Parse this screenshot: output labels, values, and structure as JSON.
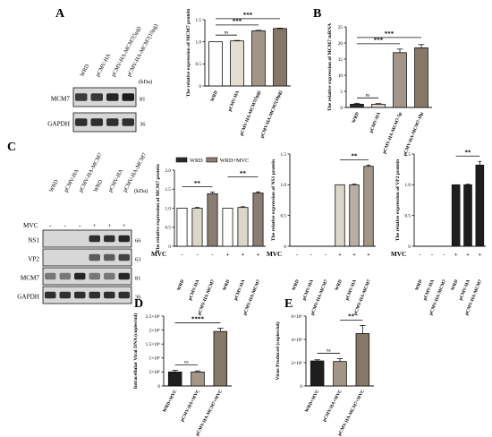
{
  "panels": {
    "A": "A",
    "B": "B",
    "C": "C",
    "D": "D",
    "E": "E"
  },
  "blot_A": {
    "lanes": [
      "WRD",
      "pCMV-HA",
      "pCMV-HA-MCM7(5μg)",
      "pCMV-HA-MCM7(10μg)"
    ],
    "kda_unit": "(kDa)",
    "rows": [
      {
        "label": "MCM7",
        "kda": "81",
        "intensity": [
          0.78,
          0.8,
          0.9,
          0.95
        ]
      },
      {
        "label": "GAPDH",
        "kda": "36",
        "intensity": [
          0.85,
          0.85,
          0.85,
          0.85
        ]
      }
    ]
  },
  "blot_C": {
    "lanes": [
      "WRD",
      "pCMV-HA",
      "pCMV-HA-MCM7",
      "WRD",
      "pCMV-HA",
      "pCMV-HA-MCM7"
    ],
    "kda_unit": "(kDa)",
    "mvc_label": "MVC",
    "mvc_signs": [
      "-",
      "-",
      "-",
      "+",
      "+",
      "+"
    ],
    "rows": [
      {
        "label": "NS1",
        "kda": "66",
        "intensity": [
          0,
          0,
          0,
          0.85,
          0.85,
          0.9
        ]
      },
      {
        "label": "VP2",
        "kda": "63",
        "intensity": [
          0,
          0,
          0,
          0.6,
          0.6,
          0.75
        ]
      },
      {
        "label": "MCM7",
        "kda": "81",
        "intensity": [
          0.45,
          0.45,
          0.9,
          0.45,
          0.45,
          0.9
        ]
      },
      {
        "label": "GAPDH",
        "kda": "36",
        "intensity": [
          0.85,
          0.85,
          0.85,
          0.85,
          0.85,
          0.85
        ]
      }
    ]
  },
  "chart_data": [
    {
      "id": "A",
      "type": "bar",
      "ylabel": "The relative expression of MCM7 protein",
      "categories": [
        "WRD",
        "pCMV-HA",
        "pCMV-HA-MCM7(5μg)",
        "pCMV-HA-MCM7(10μg)"
      ],
      "values": [
        1.0,
        1.02,
        1.25,
        1.3
      ],
      "errors": [
        0.0,
        0.01,
        0.01,
        0.01
      ],
      "colors": [
        "#ffffff",
        "#e4ddd2",
        "#a39587",
        "#867866"
      ],
      "ylim": [
        0,
        1.5
      ],
      "yticks": [
        0.0,
        0.5,
        1.0,
        1.5
      ],
      "significance": [
        {
          "from": 0,
          "to": 1,
          "label": "ns"
        },
        {
          "from": 0,
          "to": 2,
          "label": "***"
        },
        {
          "from": 0,
          "to": 3,
          "label": "***"
        }
      ]
    },
    {
      "id": "B",
      "type": "bar",
      "ylabel": "The relative expression of MCM7 mRNA",
      "categories": [
        "WRD",
        "pCMV-HA",
        "pCMV-HA-MCM7-5μ",
        "pCMV-HA-MCM7-10μ"
      ],
      "values": [
        1.0,
        1.0,
        17.0,
        18.5
      ],
      "errors": [
        0.3,
        0.2,
        1.1,
        1.0
      ],
      "colors": [
        "#2b2b2b",
        "#dcd5c9",
        "#a39587",
        "#867866"
      ],
      "ylim": [
        0,
        25
      ],
      "yticks": [
        0,
        5,
        10,
        15,
        20,
        25
      ],
      "significance": [
        {
          "from": 0,
          "to": 1,
          "label": "ns"
        },
        {
          "from": 0,
          "to": 2,
          "label": "***"
        },
        {
          "from": 0,
          "to": 3,
          "label": "***"
        }
      ]
    },
    {
      "id": "C1",
      "type": "bar",
      "ylabel": "The relative expression of MCM7 protein",
      "legend": [
        "WRD",
        "WRD+MVC"
      ],
      "legend_colors": [
        "#2b2b2b",
        "#8a7e74"
      ],
      "mvc_label": "MVC",
      "categories": [
        "WRD",
        "pCMV-HA",
        "pCMV-HA-MCM7",
        "WRD",
        "pCMV-HA",
        "pCMV-HA-MCM7"
      ],
      "mvc_signs": [
        "-",
        "-",
        "-",
        "+",
        "+",
        "+"
      ],
      "values": [
        1.0,
        1.0,
        1.38,
        1.0,
        1.02,
        1.4
      ],
      "errors": [
        0.0,
        0.02,
        0.04,
        0.0,
        0.02,
        0.03
      ],
      "colors": [
        "#ffffff",
        "#dcd5c9",
        "#8a7e74",
        "#ffffff",
        "#dcd5c9",
        "#8a7e74"
      ],
      "ylim": [
        0,
        2.0
      ],
      "yticks": [
        0.0,
        0.5,
        1.0,
        1.5,
        2.0
      ],
      "significance": [
        {
          "from": 0,
          "to": 2,
          "label": "**"
        },
        {
          "from": 3,
          "to": 5,
          "label": "**"
        }
      ]
    },
    {
      "id": "C2",
      "type": "bar",
      "ylabel": "The relative expression of NS1 protein",
      "mvc_label": "MVC",
      "categories": [
        "WRD",
        "pCMV-HA",
        "pCMV-HA-MCM7",
        "WRD",
        "pCMV-HA",
        "pCMV-HA-MCM7"
      ],
      "mvc_signs": [
        "-",
        "-",
        "-",
        "+",
        "+",
        "+"
      ],
      "values": [
        0,
        0,
        0,
        1.0,
        1.0,
        1.3
      ],
      "errors": [
        0,
        0,
        0,
        0.0,
        0.01,
        0.02
      ],
      "colors": [
        "#ffffff",
        "#dcd5c9",
        "#8a7e74",
        "#dcd5c9",
        "#b9aea3",
        "#a39587"
      ],
      "ylim": [
        0,
        1.5
      ],
      "yticks": [
        0.0,
        0.5,
        1.0,
        1.5
      ],
      "significance": [
        {
          "from": 3,
          "to": 5,
          "label": "**"
        }
      ]
    },
    {
      "id": "C3",
      "type": "bar",
      "ylabel": "The relative expression of VP2 protein",
      "mvc_label": "MVC",
      "categories": [
        "WRD",
        "pCMV-HA",
        "pCMV-HA-MCM7",
        "WRD",
        "pCMV-HA",
        "pCMV-HA-MCM7"
      ],
      "mvc_signs": [
        "-",
        "-",
        "-",
        "+",
        "+",
        "+"
      ],
      "values": [
        0,
        0,
        0,
        1.0,
        1.0,
        1.32
      ],
      "errors": [
        0,
        0,
        0,
        0.0,
        0.01,
        0.06
      ],
      "colors": [
        "#ffffff",
        "#dcd5c9",
        "#8a7e74",
        "#1e1e1e",
        "#1e1e1e",
        "#1e1e1e"
      ],
      "ylim": [
        0,
        1.5
      ],
      "yticks": [
        0.0,
        0.5,
        1.0,
        1.5
      ],
      "significance": [
        {
          "from": 3,
          "to": 5,
          "label": "**"
        }
      ]
    },
    {
      "id": "D",
      "type": "bar",
      "ylabel": "Intracellular Viral DNA (copies/ml)",
      "categories": [
        "WRD+MVC",
        "pCMV-HA+MVC",
        "pCMV-HA-MCM7+MVC"
      ],
      "values": [
        500000,
        500000,
        1950000
      ],
      "errors": [
        60000,
        40000,
        120000
      ],
      "colors": [
        "#1e1e1e",
        "#a39587",
        "#867866"
      ],
      "ylim": [
        0,
        2500000
      ],
      "yticks": [
        0,
        500000,
        1000000,
        1500000,
        2000000,
        2500000
      ],
      "ytick_labels": [
        "0",
        "5×10⁵",
        "1×10⁶",
        "1.5×10⁶",
        "2×10⁶",
        "2.5×10⁶"
      ],
      "significance": [
        {
          "from": 0,
          "to": 1,
          "label": "ns"
        },
        {
          "from": 0,
          "to": 2,
          "label": "****"
        }
      ]
    },
    {
      "id": "E",
      "type": "bar",
      "ylabel": "Virus Produced (copies/ml)",
      "categories": [
        "WRD+MVC",
        "pCMV-HA+MVC",
        "pCMV-HA-MCM7+MVC"
      ],
      "values": [
        2150000,
        2100000,
        4500000
      ],
      "errors": [
        100000,
        250000,
        700000
      ],
      "colors": [
        "#1e1e1e",
        "#a39587",
        "#867866"
      ],
      "ylim": [
        0,
        6000000
      ],
      "yticks": [
        0,
        2000000,
        4000000,
        6000000
      ],
      "ytick_labels": [
        "0",
        "2×10⁶",
        "4×10⁶",
        "6×10⁶"
      ],
      "significance": [
        {
          "from": 0,
          "to": 1,
          "label": "ns"
        },
        {
          "from": 1,
          "to": 2,
          "label": "**"
        }
      ]
    }
  ]
}
